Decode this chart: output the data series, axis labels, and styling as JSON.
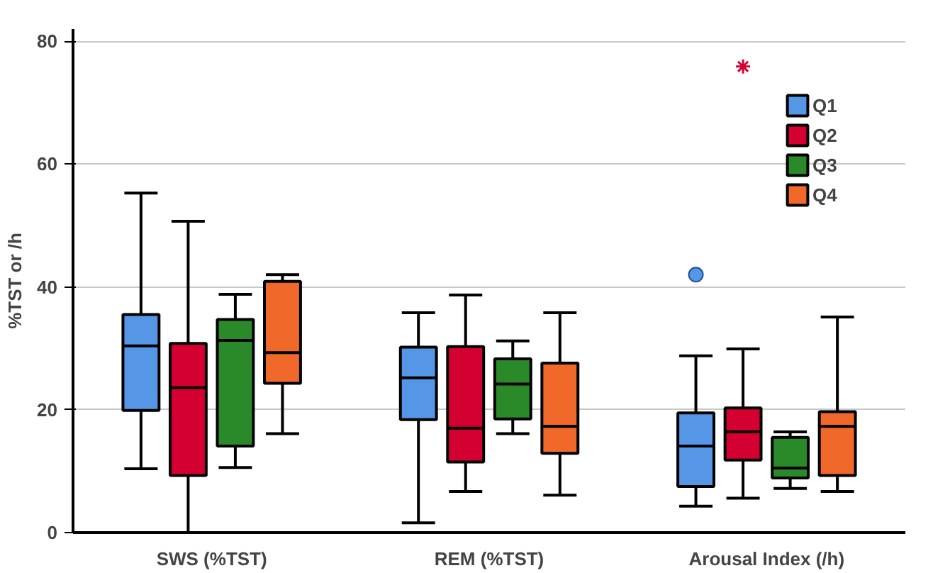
{
  "chart_data": {
    "type": "box",
    "ylabel": "%TST or /h",
    "categories": [
      "SWS (%TST)",
      "REM (%TST)",
      "Arousal Index (/h)"
    ],
    "ylim": [
      0,
      82
    ],
    "yticks": [
      0,
      20,
      40,
      60,
      80
    ],
    "grid": "y",
    "legend": "top right",
    "series": [
      {
        "name": "Q1",
        "color": "#5596e6",
        "marker": "circle",
        "boxes": [
          {
            "low": 10.4,
            "q1": 19.9,
            "median": 30.4,
            "q3": 35.5,
            "high": 55.3
          },
          {
            "low": 1.6,
            "q1": 18.4,
            "median": 25.2,
            "q3": 30.2,
            "high": 35.8
          },
          {
            "low": 4.3,
            "q1": 7.5,
            "median": 14.1,
            "q3": 19.5,
            "high": 28.8,
            "outliers": [
              42.0
            ]
          }
        ]
      },
      {
        "name": "Q2",
        "color": "#d50032",
        "marker": "star",
        "boxes": [
          {
            "low": 0,
            "q1": 9.3,
            "median": 23.6,
            "q3": 30.8,
            "high": 50.7
          },
          {
            "low": 6.7,
            "q1": 11.5,
            "median": 17.0,
            "q3": 30.3,
            "high": 38.7
          },
          {
            "low": 5.6,
            "q1": 11.8,
            "median": 16.4,
            "q3": 20.3,
            "high": 29.9,
            "outliers": [
              75.9
            ]
          }
        ]
      },
      {
        "name": "Q3",
        "color": "#2a8a2a",
        "boxes": [
          {
            "low": 10.6,
            "q1": 14.1,
            "median": 31.3,
            "q3": 34.7,
            "high": 38.8
          },
          {
            "low": 16.1,
            "q1": 18.5,
            "median": 24.2,
            "q3": 28.3,
            "high": 31.2
          },
          {
            "low": 7.2,
            "q1": 8.9,
            "median": 10.5,
            "q3": 15.5,
            "high": 16.4
          }
        ]
      },
      {
        "name": "Q4",
        "color": "#f0692a",
        "boxes": [
          {
            "low": 16.1,
            "q1": 24.3,
            "median": 29.3,
            "q3": 40.9,
            "high": 42.0
          },
          {
            "low": 6.1,
            "q1": 12.9,
            "median": 17.3,
            "q3": 27.6,
            "high": 35.8
          },
          {
            "low": 6.7,
            "q1": 9.3,
            "median": 17.3,
            "q3": 19.7,
            "high": 35.1
          }
        ]
      }
    ]
  }
}
